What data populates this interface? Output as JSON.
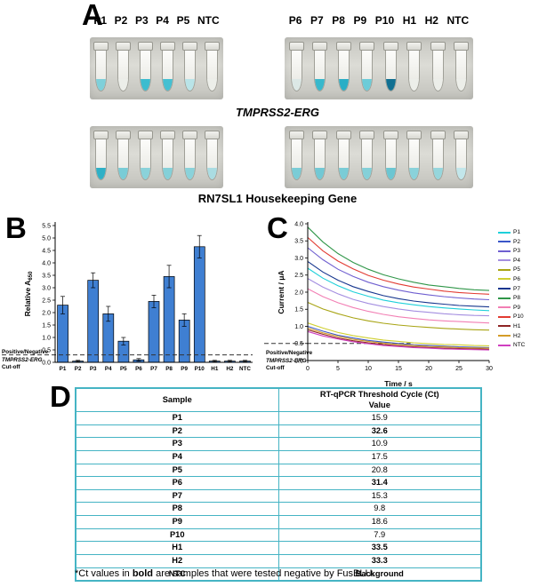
{
  "panels": {
    "a": "A",
    "b": "B",
    "c": "C",
    "d": "D"
  },
  "panel_a": {
    "left_tube_labels": [
      "P1",
      "P2",
      "P3",
      "P4",
      "P5",
      "NTC"
    ],
    "right_tube_labels": [
      "P6",
      "P7",
      "P8",
      "P9",
      "P10",
      "H1",
      "H2",
      "NTC"
    ],
    "caption_top": "TMPRSS2-ERG",
    "caption_bottom": "RN7SL1 Housekeeping Gene",
    "tube_liquid_colors": {
      "tmprss2_left": [
        "#7fd0da",
        "#eceee9",
        "#3cbccf",
        "#44c0d2",
        "#b9e4e8",
        "#eceee9"
      ],
      "tmprss2_right": [
        "#dce8e6",
        "#38b8cc",
        "#2aaec6",
        "#6cccd8",
        "#117092",
        "#eceee9",
        "#eceee9",
        "#eceee9"
      ],
      "rn7sl1_left": [
        "#2fb0c6",
        "#79ccd6",
        "#8ad2da",
        "#84d0d8",
        "#8ad2da",
        "#aadce2"
      ],
      "rn7sl1_right": [
        "#7accd6",
        "#72c8d4",
        "#7accd6",
        "#84d0d8",
        "#6cc6d2",
        "#8ad2da",
        "#96d6dc",
        "#c2e6ea"
      ]
    }
  },
  "panel_b": {
    "cutoff_label": {
      "l1": "Positive/Negative",
      "l2": "TMPRSS2-ERG",
      "l3": "Cut-off"
    }
  },
  "panel_c": {
    "cutoff_label": {
      "l1": "Positive/Negative",
      "l2": "TMPRSS2-ERG",
      "l3": "Cut-off"
    }
  },
  "panel_d": {
    "header_col1": "Sample",
    "header_col2_line1": "RT-qPCR Threshold Cycle (Ct)",
    "header_col2_line2": "Value",
    "footnote_prefix": "*Ct values in ",
    "footnote_bold": "bold",
    "footnote_suffix": " are samples that were tested negative by FusBLU.",
    "border_color": "#45b4c4"
  },
  "chart_data": [
    {
      "type": "bar",
      "title": "",
      "ylabel": "Relative A650",
      "ylabel_main": "Relative A",
      "ylabel_sub": "650",
      "categories": [
        "P1",
        "P2",
        "P3",
        "P4",
        "P5",
        "P6",
        "P7",
        "P8",
        "P9",
        "P10",
        "H1",
        "H2",
        "NTC"
      ],
      "values": [
        2.3,
        0.05,
        3.3,
        1.95,
        0.85,
        0.1,
        2.45,
        3.45,
        1.7,
        4.65,
        0.05,
        0.05,
        0.05
      ],
      "errors": [
        0.35,
        0.03,
        0.3,
        0.3,
        0.15,
        0.05,
        0.25,
        0.45,
        0.25,
        0.45,
        0.03,
        0.03,
        0.03
      ],
      "ylim": [
        0,
        5.5
      ],
      "ytick_step": 0.5,
      "cutoff": 0.3,
      "bar_color": "#3f7fd2",
      "grid": false,
      "legend_position": "none"
    },
    {
      "type": "line",
      "title": "",
      "xlabel": "Time / s",
      "ylabel": "Current / μA",
      "xlim": [
        0,
        30
      ],
      "ylim": [
        0,
        4.0
      ],
      "xticks": [
        0,
        5,
        10,
        15,
        20,
        25,
        30
      ],
      "ytick_step": 0.5,
      "cutoff": 0.5,
      "grid": false,
      "legend_position": "right",
      "x": [
        0,
        2.5,
        5,
        7.5,
        10,
        12.5,
        15,
        17.5,
        20,
        22.5,
        25,
        27.5,
        30
      ],
      "series": [
        {
          "name": "P1",
          "color": "#1ed0da",
          "values": [
            2.7,
            2.41,
            2.19,
            2.01,
            1.88,
            1.77,
            1.69,
            1.63,
            1.58,
            1.54,
            1.51,
            1.48,
            1.46
          ]
        },
        {
          "name": "P2",
          "color": "#3a56c8",
          "values": [
            1.0,
            0.86,
            0.74,
            0.66,
            0.59,
            0.54,
            0.5,
            0.46,
            0.44,
            0.42,
            0.4,
            0.39,
            0.38
          ]
        },
        {
          "name": "P3",
          "color": "#6f5fd0",
          "values": [
            3.3,
            2.95,
            2.67,
            2.46,
            2.29,
            2.16,
            2.06,
            1.98,
            1.92,
            1.87,
            1.83,
            1.8,
            1.78
          ]
        },
        {
          "name": "P4",
          "color": "#a48ee0",
          "values": [
            2.4,
            2.15,
            1.95,
            1.79,
            1.67,
            1.58,
            1.51,
            1.45,
            1.41,
            1.37,
            1.34,
            1.32,
            1.31
          ]
        },
        {
          "name": "P5",
          "color": "#a8a414",
          "values": [
            1.7,
            1.51,
            1.37,
            1.25,
            1.16,
            1.09,
            1.04,
            1.0,
            0.97,
            0.94,
            0.92,
            0.9,
            0.89
          ]
        },
        {
          "name": "P6",
          "color": "#cfcf30",
          "values": [
            1.1,
            0.95,
            0.82,
            0.73,
            0.66,
            0.6,
            0.56,
            0.52,
            0.49,
            0.47,
            0.46,
            0.44,
            0.43
          ]
        },
        {
          "name": "P7",
          "color": "#16368e",
          "values": [
            2.9,
            2.59,
            2.35,
            2.16,
            2.02,
            1.9,
            1.81,
            1.74,
            1.69,
            1.65,
            1.61,
            1.59,
            1.57
          ]
        },
        {
          "name": "P8",
          "color": "#2f9648",
          "values": [
            3.9,
            3.47,
            3.13,
            2.87,
            2.67,
            2.51,
            2.39,
            2.29,
            2.21,
            2.16,
            2.11,
            2.07,
            2.05
          ]
        },
        {
          "name": "P9",
          "color": "#f27fb4",
          "values": [
            2.1,
            1.87,
            1.69,
            1.55,
            1.44,
            1.35,
            1.28,
            1.23,
            1.19,
            1.16,
            1.14,
            1.12,
            1.1
          ]
        },
        {
          "name": "P10",
          "color": "#e23b32",
          "values": [
            3.6,
            3.21,
            2.91,
            2.68,
            2.49,
            2.35,
            2.24,
            2.15,
            2.09,
            2.03,
            1.99,
            1.96,
            1.94
          ]
        },
        {
          "name": "H1",
          "color": "#8e2424",
          "values": [
            0.9,
            0.77,
            0.66,
            0.58,
            0.52,
            0.47,
            0.43,
            0.4,
            0.38,
            0.36,
            0.35,
            0.34,
            0.33
          ]
        },
        {
          "name": "H2",
          "color": "#d49c28",
          "values": [
            0.95,
            0.81,
            0.71,
            0.62,
            0.56,
            0.51,
            0.47,
            0.44,
            0.41,
            0.4,
            0.38,
            0.37,
            0.36
          ]
        },
        {
          "name": "NTC",
          "color": "#cf3fc0",
          "values": [
            0.85,
            0.72,
            0.63,
            0.55,
            0.49,
            0.44,
            0.41,
            0.38,
            0.36,
            0.34,
            0.33,
            0.32,
            0.31
          ]
        }
      ]
    },
    {
      "type": "table",
      "headers": [
        "Sample",
        "RT-qPCR Threshold Cycle (Ct) Value"
      ],
      "rows": [
        [
          "P1",
          "15.9"
        ],
        [
          "P2",
          "32.6"
        ],
        [
          "P3",
          "10.9"
        ],
        [
          "P4",
          "17.5"
        ],
        [
          "P5",
          "20.8"
        ],
        [
          "P6",
          "31.4"
        ],
        [
          "P7",
          "15.3"
        ],
        [
          "P8",
          "9.8"
        ],
        [
          "P9",
          "18.6"
        ],
        [
          "P10",
          "7.9"
        ],
        [
          "H1",
          "33.5"
        ],
        [
          "H2",
          "33.3"
        ],
        [
          "NTC",
          "Background"
        ]
      ],
      "bold_value_rows": [
        "P2",
        "P6",
        "H1",
        "H2",
        "NTC"
      ]
    }
  ]
}
